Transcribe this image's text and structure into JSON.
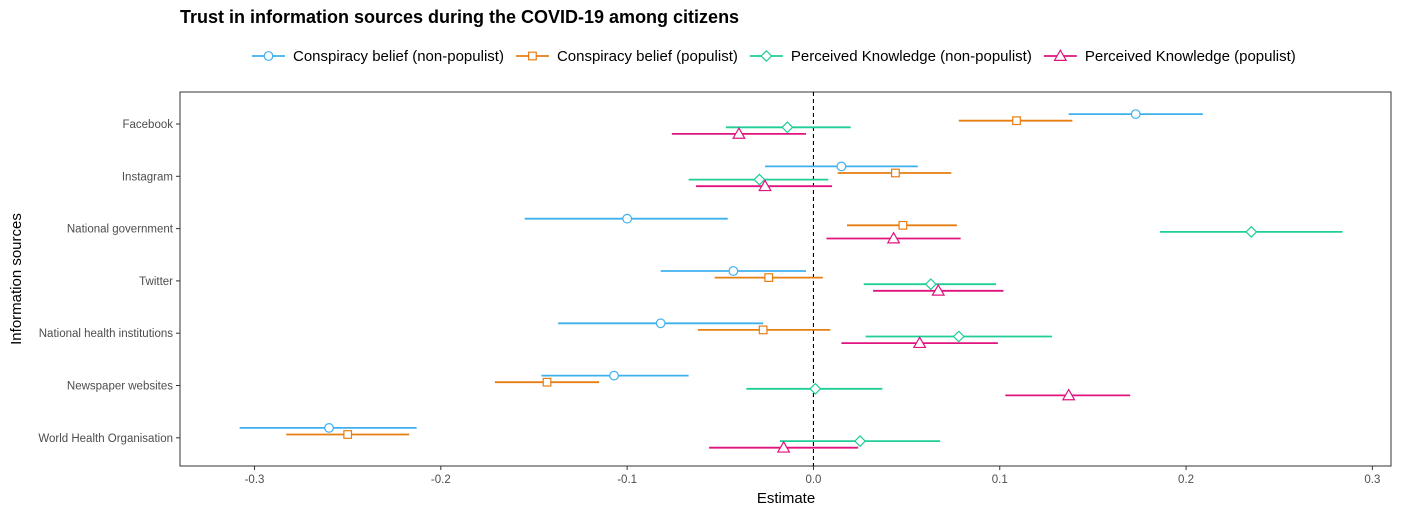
{
  "chart_data": {
    "type": "forest",
    "title": "Trust in information sources during the COVID-19 among citizens",
    "xlabel": "Estimate",
    "ylabel": "Information sources",
    "xlim": [
      -0.34,
      0.31
    ],
    "xticks": [
      -0.3,
      -0.2,
      -0.1,
      0.0,
      0.1,
      0.2,
      0.3
    ],
    "xtick_labels": [
      "-0.3",
      "-0.2",
      "-0.1",
      "0.0",
      "0.1",
      "0.2",
      "0.3"
    ],
    "reference_line": 0,
    "grid": false,
    "legend_position": "top",
    "categories": [
      "Facebook",
      "Instagram",
      "National government",
      "Twitter",
      "National health institutions",
      "Newspaper websites",
      "World Health Organisation"
    ],
    "series": [
      {
        "name": "Conspiracy belief (non-populist)",
        "color": "#3fb0ee",
        "marker": "circle",
        "estimates": [
          0.173,
          0.015,
          -0.1,
          -0.043,
          -0.082,
          -0.107,
          -0.26
        ],
        "lower": [
          0.137,
          -0.026,
          -0.155,
          -0.082,
          -0.137,
          -0.146,
          -0.308
        ],
        "upper": [
          0.209,
          0.056,
          -0.046,
          -0.004,
          -0.027,
          -0.067,
          -0.213
        ]
      },
      {
        "name": "Conspiracy belief (populist)",
        "color": "#e67e12",
        "marker": "square",
        "estimates": [
          0.109,
          0.044,
          0.048,
          -0.024,
          -0.027,
          -0.143,
          -0.25
        ],
        "lower": [
          0.078,
          0.013,
          0.018,
          -0.053,
          -0.062,
          -0.171,
          -0.283
        ],
        "upper": [
          0.139,
          0.074,
          0.077,
          0.005,
          0.009,
          -0.115,
          -0.217
        ]
      },
      {
        "name": "Perceived Knowledge (non-populist)",
        "color": "#1fcd97",
        "marker": "diamond",
        "estimates": [
          -0.014,
          -0.029,
          0.235,
          0.063,
          0.078,
          0.001,
          0.025
        ],
        "lower": [
          -0.047,
          -0.067,
          0.186,
          0.027,
          0.028,
          -0.036,
          -0.018
        ],
        "upper": [
          0.02,
          0.008,
          0.284,
          0.098,
          0.128,
          0.037,
          0.068
        ]
      },
      {
        "name": "Perceived Knowledge (populist)",
        "color": "#e0137f",
        "marker": "triangle",
        "estimates": [
          -0.04,
          -0.026,
          0.043,
          0.067,
          0.057,
          0.137,
          -0.016
        ],
        "lower": [
          -0.076,
          -0.063,
          0.007,
          0.032,
          0.015,
          0.103,
          -0.056
        ],
        "upper": [
          -0.004,
          0.01,
          0.079,
          0.102,
          0.099,
          0.17,
          0.024
        ]
      }
    ]
  }
}
